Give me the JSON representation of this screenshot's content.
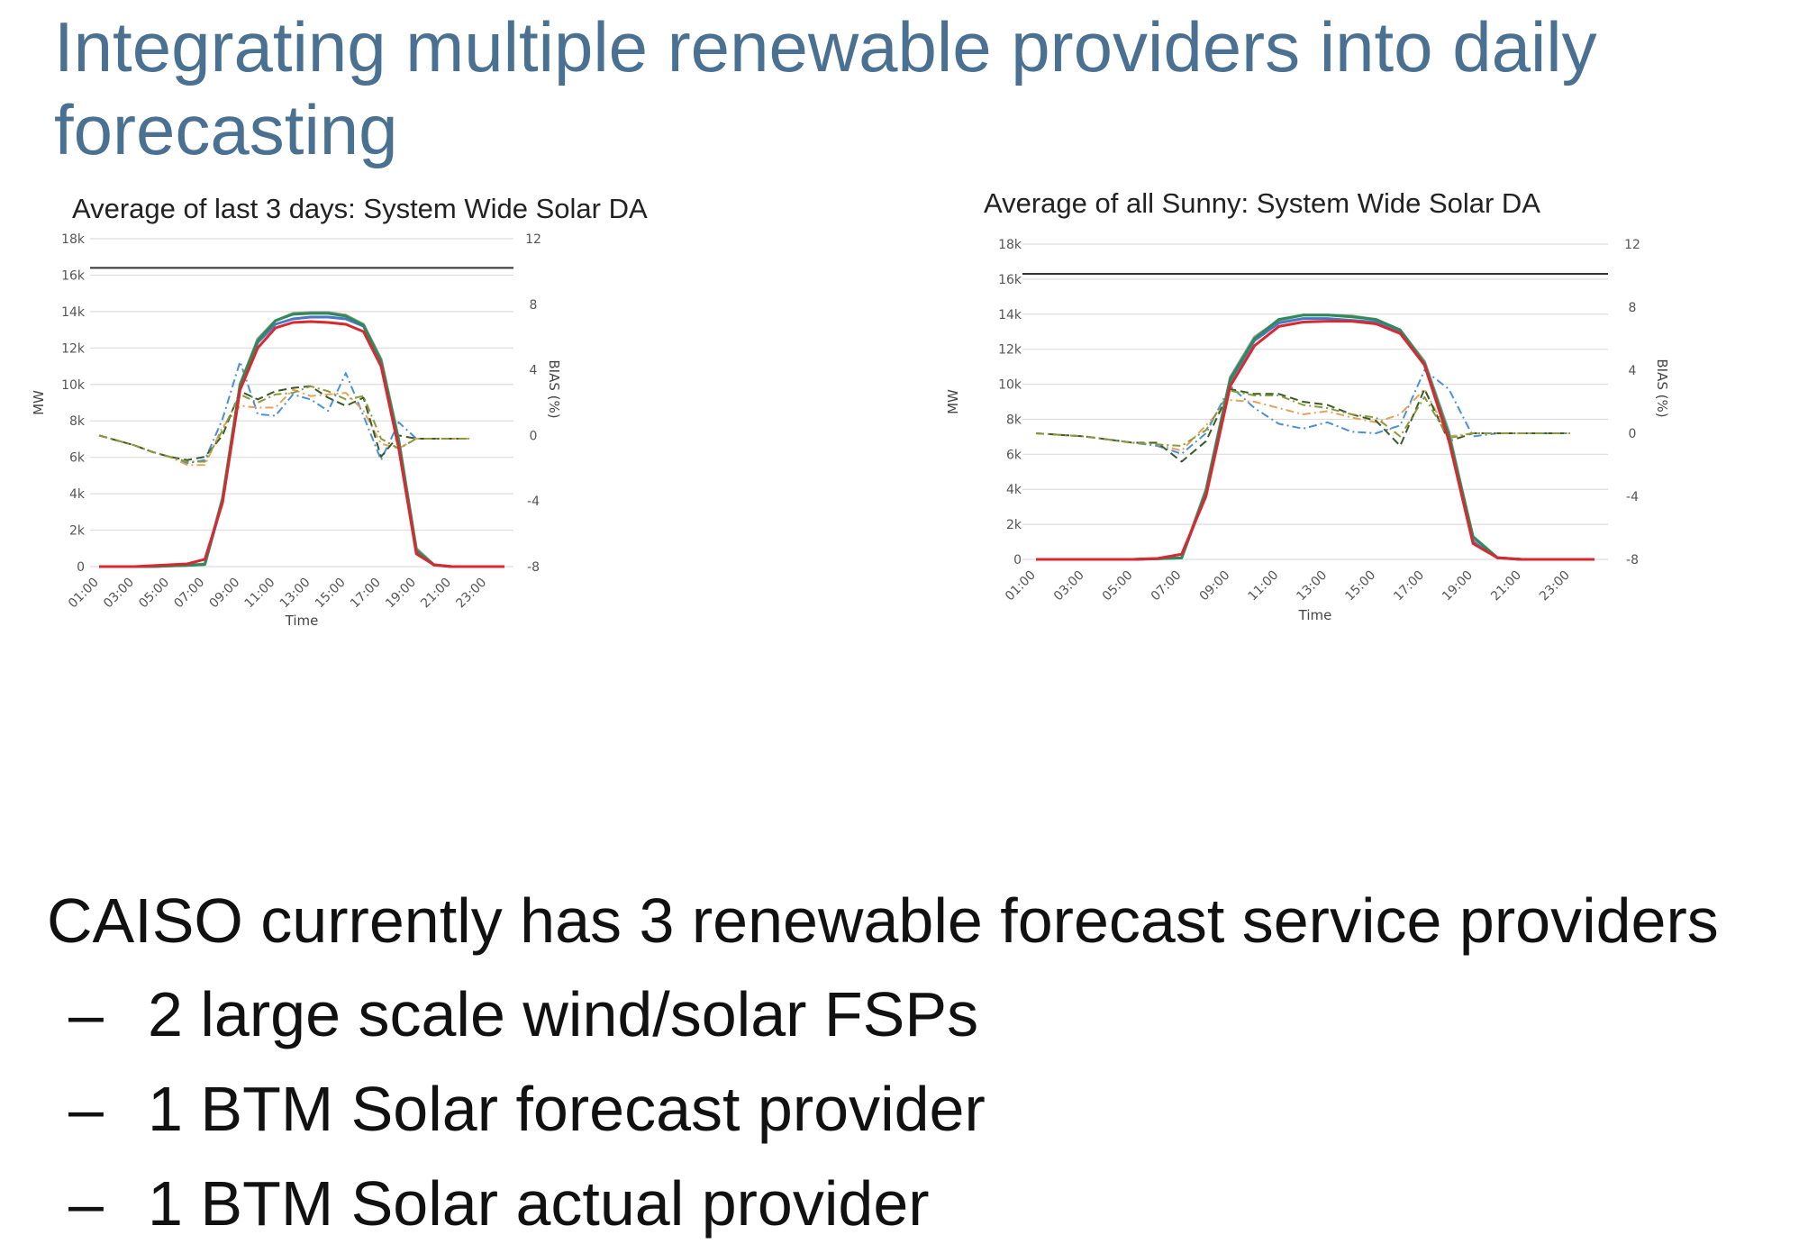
{
  "slide": {
    "title": "Integrating multiple renewable providers into daily forecasting"
  },
  "bullets": {
    "main": "CAISO currently has 3 renewable forecast service providers",
    "dash": "–",
    "subs": [
      "2 large scale wind/solar FSPs",
      "1 BTM Solar forecast provider",
      "1 BTM Solar actual provider"
    ]
  },
  "colors": {
    "title": "#4a7191",
    "forecast_red": "#d9282f",
    "forecast_green": "#2e8b57",
    "forecast_blue": "#4a78c8",
    "forecast_gray": "#9a9a9a",
    "bias_blue": "#4a90d9",
    "bias_orange": "#e8a060",
    "bias_darkgreen": "#3a5a2a",
    "bias_olive": "#8a9a3a",
    "target_line": "#333333"
  },
  "chart_data": [
    {
      "type": "line",
      "title": "Average of last 3 days: System Wide Solar DA",
      "xlabel": "Time",
      "ylabel": "MW",
      "ylabel_right": "BIAS (%)",
      "x": [
        "01:00",
        "02:00",
        "03:00",
        "04:00",
        "05:00",
        "06:00",
        "07:00",
        "08:00",
        "09:00",
        "10:00",
        "11:00",
        "12:00",
        "13:00",
        "14:00",
        "15:00",
        "16:00",
        "17:00",
        "18:00",
        "19:00",
        "20:00",
        "21:00",
        "22:00",
        "23:00",
        "24:00"
      ],
      "x_ticks": [
        "01:00",
        "03:00",
        "05:00",
        "07:00",
        "09:00",
        "11:00",
        "13:00",
        "15:00",
        "17:00",
        "19:00",
        "21:00",
        "23:00"
      ],
      "ylim": [
        0,
        18000
      ],
      "y_ticks": [
        0,
        2000,
        4000,
        6000,
        8000,
        10000,
        12000,
        14000,
        16000,
        18000
      ],
      "y_tick_labels": [
        "0",
        "2k",
        "4k",
        "6k",
        "8k",
        "10k",
        "12k",
        "14k",
        "16k",
        "18k"
      ],
      "y2lim": [
        -8,
        12
      ],
      "y2_ticks": [
        -8,
        -4,
        0,
        4,
        8,
        12
      ],
      "grid": true,
      "reference_line": 16400,
      "series": [
        {
          "axis": "left",
          "color": "#9a9a9a",
          "dash": "",
          "values": [
            0,
            0,
            0,
            0,
            50,
            80,
            150,
            3800,
            10000,
            12500,
            13500,
            13900,
            13950,
            13950,
            13800,
            13300,
            11400,
            7000,
            1000,
            100,
            0,
            0,
            0,
            0
          ]
        },
        {
          "axis": "left",
          "color": "#4a78c8",
          "dash": "",
          "values": [
            0,
            0,
            0,
            0,
            40,
            70,
            120,
            3600,
            9900,
            12300,
            13300,
            13600,
            13700,
            13700,
            13600,
            13200,
            11200,
            6800,
            800,
            80,
            0,
            0,
            0,
            0
          ]
        },
        {
          "axis": "left",
          "color": "#2e8b57",
          "dash": "",
          "values": [
            0,
            0,
            0,
            0,
            40,
            70,
            120,
            3700,
            10000,
            12400,
            13500,
            13850,
            13900,
            13900,
            13750,
            13250,
            11300,
            6900,
            900,
            100,
            0,
            0,
            0,
            0
          ]
        },
        {
          "axis": "left",
          "color": "#d9282f",
          "dash": "",
          "values": [
            0,
            0,
            0,
            50,
            100,
            150,
            400,
            3500,
            9700,
            12000,
            13100,
            13400,
            13450,
            13400,
            13300,
            12900,
            11000,
            6500,
            700,
            100,
            0,
            0,
            0,
            0
          ]
        },
        {
          "axis": "right",
          "color": "#4a90d9",
          "dash": "9,4,2,4",
          "values": [
            0,
            -0.3,
            -0.6,
            -1.0,
            -1.3,
            -1.7,
            -1.5,
            1.0,
            4.5,
            1.3,
            1.2,
            2.5,
            2.2,
            1.5,
            3.8,
            1.2,
            -1.5,
            0.8,
            -0.2,
            -0.2,
            -0.2,
            -0.2,
            null,
            null
          ]
        },
        {
          "axis": "right",
          "color": "#e8a060",
          "dash": "9,4,2,4",
          "values": [
            0,
            -0.3,
            -0.6,
            -1.0,
            -1.3,
            -1.8,
            -1.8,
            0.5,
            1.8,
            1.7,
            1.7,
            2.8,
            2.4,
            2.5,
            2.6,
            1.5,
            -0.5,
            -0.8,
            -0.2,
            -0.2,
            -0.2,
            -0.2,
            null,
            null
          ]
        },
        {
          "axis": "right",
          "color": "#3a5a2a",
          "dash": "9,5",
          "values": [
            0,
            -0.3,
            -0.6,
            -1.0,
            -1.3,
            -1.5,
            -1.3,
            0,
            2.7,
            2.2,
            2.7,
            2.9,
            3.0,
            2.3,
            1.8,
            2.3,
            -1.3,
            0,
            -0.2,
            -0.2,
            -0.2,
            -0.2,
            null,
            null
          ]
        },
        {
          "axis": "right",
          "color": "#8a9a3a",
          "dash": "9,4,2,4",
          "values": [
            0,
            -0.3,
            -0.6,
            -1.0,
            -1.3,
            -1.6,
            -1.6,
            0.3,
            2.5,
            2.0,
            2.5,
            2.6,
            3.0,
            2.7,
            2.2,
            2.4,
            -0.2,
            -0.8,
            -0.2,
            -0.2,
            -0.2,
            -0.2,
            null,
            null
          ]
        }
      ]
    },
    {
      "type": "line",
      "title": "Average of all Sunny: System Wide Solar DA",
      "xlabel": "Time",
      "ylabel": "MW",
      "ylabel_right": "BIAS (%)",
      "x": [
        "01:00",
        "02:00",
        "03:00",
        "04:00",
        "05:00",
        "06:00",
        "07:00",
        "08:00",
        "09:00",
        "10:00",
        "11:00",
        "12:00",
        "13:00",
        "14:00",
        "15:00",
        "16:00",
        "17:00",
        "18:00",
        "19:00",
        "20:00",
        "21:00",
        "22:00",
        "23:00",
        "24:00"
      ],
      "x_ticks": [
        "01:00",
        "03:00",
        "05:00",
        "07:00",
        "09:00",
        "11:00",
        "13:00",
        "15:00",
        "17:00",
        "19:00",
        "21:00",
        "23:00"
      ],
      "ylim": [
        0,
        18000
      ],
      "y_ticks": [
        0,
        2000,
        4000,
        6000,
        8000,
        10000,
        12000,
        14000,
        16000,
        18000
      ],
      "y_tick_labels": [
        "0",
        "2k",
        "4k",
        "6k",
        "8k",
        "10k",
        "12k",
        "14k",
        "16k",
        "18k"
      ],
      "y2lim": [
        -8,
        12
      ],
      "y2_ticks": [
        -8,
        -4,
        0,
        4,
        8,
        12
      ],
      "grid": true,
      "reference_line": 16300,
      "series": [
        {
          "axis": "left",
          "color": "#9a9a9a",
          "dash": "",
          "values": [
            0,
            0,
            0,
            0,
            0,
            50,
            100,
            4000,
            10400,
            12700,
            13650,
            13950,
            13950,
            13900,
            13700,
            13100,
            11300,
            7300,
            1200,
            100,
            0,
            0,
            0,
            0
          ]
        },
        {
          "axis": "left",
          "color": "#4a78c8",
          "dash": "",
          "values": [
            0,
            0,
            0,
            0,
            0,
            30,
            80,
            3800,
            10200,
            12500,
            13500,
            13750,
            13750,
            13650,
            13550,
            13000,
            11100,
            7000,
            1000,
            80,
            0,
            0,
            0,
            0
          ]
        },
        {
          "axis": "left",
          "color": "#2e8b57",
          "dash": "",
          "values": [
            0,
            0,
            0,
            0,
            0,
            40,
            90,
            3900,
            10300,
            12600,
            13700,
            13950,
            13950,
            13850,
            13700,
            13100,
            11200,
            7100,
            1300,
            100,
            0,
            0,
            0,
            0
          ]
        },
        {
          "axis": "left",
          "color": "#d9282f",
          "dash": "",
          "values": [
            0,
            0,
            0,
            0,
            0,
            50,
            300,
            3600,
            9900,
            12200,
            13300,
            13550,
            13600,
            13600,
            13450,
            12900,
            11100,
            6800,
            900,
            100,
            0,
            0,
            0,
            0
          ]
        },
        {
          "axis": "right",
          "color": "#4a90d9",
          "dash": "9,4,2,4",
          "values": [
            0,
            -0.1,
            -0.2,
            -0.4,
            -0.6,
            -0.8,
            -1.3,
            0,
            3.0,
            1.6,
            0.6,
            0.3,
            0.7,
            0.1,
            0,
            0.5,
            4.0,
            2.8,
            -0.2,
            0,
            0,
            0,
            0,
            null
          ]
        },
        {
          "axis": "right",
          "color": "#e8a060",
          "dash": "9,4,2,4",
          "values": [
            0,
            -0.1,
            -0.2,
            -0.4,
            -0.6,
            -0.7,
            -1.1,
            0.5,
            2.1,
            2.0,
            1.6,
            1.2,
            1.4,
            1.0,
            0.7,
            1.2,
            2.8,
            -0.2,
            0,
            0,
            0,
            0,
            0,
            null
          ]
        },
        {
          "axis": "right",
          "color": "#3a5a2a",
          "dash": "9,5",
          "values": [
            0,
            -0.1,
            -0.2,
            -0.4,
            -0.6,
            -0.6,
            -1.8,
            -0.5,
            2.8,
            2.5,
            2.5,
            2.0,
            1.8,
            1.2,
            0.8,
            -0.8,
            2.8,
            -0.5,
            0,
            0,
            0,
            0,
            0,
            null
          ]
        },
        {
          "axis": "right",
          "color": "#8a9a3a",
          "dash": "9,4,2,4",
          "values": [
            0,
            -0.1,
            -0.2,
            -0.4,
            -0.6,
            -0.7,
            -0.8,
            0.2,
            2.7,
            2.4,
            2.4,
            1.8,
            1.6,
            1.2,
            1.0,
            -0.2,
            2.3,
            -0.3,
            0,
            0,
            0,
            0,
            0,
            null
          ]
        }
      ]
    }
  ]
}
